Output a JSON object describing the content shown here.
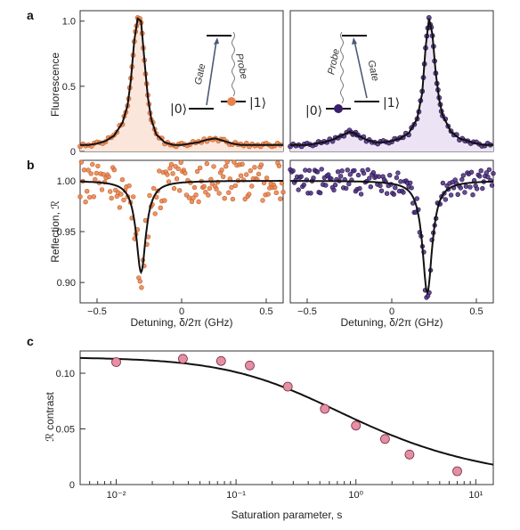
{
  "panels": {
    "a": "a",
    "b": "b",
    "c": "c"
  },
  "colors": {
    "orange": "#e8834e",
    "purple": "#4b2e83",
    "pink": "#e58fa5",
    "fillOrange": "#fbe6dc",
    "fillPurple": "#ece4f4"
  },
  "chart_data": [
    {
      "type": "line",
      "panel": "a",
      "subplot": "left",
      "ylabel": "Fluorescence",
      "yticks": [
        "0",
        "0.5",
        "1.0"
      ],
      "ylim": [
        0,
        1.08
      ],
      "xlim": [
        -0.6,
        0.6
      ],
      "xticks": [],
      "series": [
        {
          "x": [
            -0.6,
            -0.55,
            -0.5,
            -0.45,
            -0.4,
            -0.35,
            -0.32,
            -0.3,
            -0.28,
            -0.26,
            -0.24,
            -0.22,
            -0.2,
            -0.18,
            -0.15,
            -0.1,
            -0.05,
            0,
            0.05,
            0.1,
            0.15,
            0.2,
            0.25,
            0.3,
            0.35,
            0.4,
            0.45,
            0.5,
            0.55,
            0.6
          ],
          "y": [
            0.05,
            0.05,
            0.06,
            0.08,
            0.12,
            0.22,
            0.35,
            0.55,
            0.85,
            1.02,
            1.0,
            0.7,
            0.42,
            0.25,
            0.13,
            0.07,
            0.05,
            0.05,
            0.06,
            0.07,
            0.09,
            0.1,
            0.08,
            0.06,
            0.05,
            0.05,
            0.05,
            0.05,
            0.05,
            0.05
          ]
        }
      ],
      "inset": {
        "gate": "Gate",
        "probe": "Probe",
        "ket0": "|0⟩",
        "ket1": "|1⟩"
      }
    },
    {
      "type": "line",
      "panel": "a",
      "subplot": "right",
      "ylim": [
        0,
        1.08
      ],
      "xlim": [
        -0.6,
        0.6
      ],
      "series": [
        {
          "x": [
            -0.6,
            -0.55,
            -0.5,
            -0.45,
            -0.4,
            -0.35,
            -0.3,
            -0.25,
            -0.22,
            -0.2,
            -0.15,
            -0.1,
            -0.05,
            0,
            0.05,
            0.1,
            0.15,
            0.18,
            0.2,
            0.22,
            0.24,
            0.26,
            0.28,
            0.3,
            0.35,
            0.4,
            0.45,
            0.5,
            0.55,
            0.6
          ],
          "y": [
            0.05,
            0.05,
            0.05,
            0.06,
            0.07,
            0.09,
            0.12,
            0.15,
            0.14,
            0.12,
            0.09,
            0.07,
            0.07,
            0.08,
            0.1,
            0.14,
            0.25,
            0.45,
            0.8,
            1.02,
            0.9,
            0.6,
            0.4,
            0.28,
            0.15,
            0.1,
            0.08,
            0.06,
            0.05,
            0.05
          ]
        }
      ],
      "inset": {
        "gate": "Gate",
        "probe": "Probe",
        "ket0": "|0⟩",
        "ket1": "|1⟩"
      }
    },
    {
      "type": "scatter",
      "panel": "b",
      "subplot": "left",
      "xlabel": "Detuning, δ/2π (GHz)",
      "ylabel": "Reflection, ℛ",
      "xticks": [
        "−0.5",
        "0",
        "0.5"
      ],
      "yticks": [
        "0.90",
        "0.95",
        "1.00"
      ],
      "ylim": [
        0.88,
        1.02
      ],
      "xlim": [
        -0.6,
        0.6
      ],
      "dip_center": -0.24,
      "dip_min": 0.91
    },
    {
      "type": "scatter",
      "panel": "b",
      "subplot": "right",
      "xlabel": "Detuning, δ/2π (GHz)",
      "xticks": [
        "−0.5",
        "0",
        "0.5"
      ],
      "ylim": [
        0.88,
        1.02
      ],
      "xlim": [
        -0.6,
        0.6
      ],
      "dip_center": 0.21,
      "dip_min": 0.89
    },
    {
      "type": "scatter",
      "panel": "c",
      "xlabel": "Saturation parameter, s",
      "ylabel": "ℛ contrast",
      "xscale": "log",
      "xlim": [
        0.005,
        14
      ],
      "ylim": [
        0,
        0.12
      ],
      "yticks": [
        "0",
        "0.05",
        "0.10"
      ],
      "xticks": [
        "10⁻²",
        "10⁻¹",
        "10⁰",
        "10¹"
      ],
      "points": [
        {
          "x": 0.01,
          "y": 0.11
        },
        {
          "x": 0.036,
          "y": 0.113
        },
        {
          "x": 0.075,
          "y": 0.111
        },
        {
          "x": 0.13,
          "y": 0.107
        },
        {
          "x": 0.27,
          "y": 0.088
        },
        {
          "x": 0.55,
          "y": 0.068
        },
        {
          "x": 1.0,
          "y": 0.053
        },
        {
          "x": 1.75,
          "y": 0.041
        },
        {
          "x": 2.8,
          "y": 0.027
        },
        {
          "x": 7.0,
          "y": 0.012
        }
      ]
    }
  ]
}
